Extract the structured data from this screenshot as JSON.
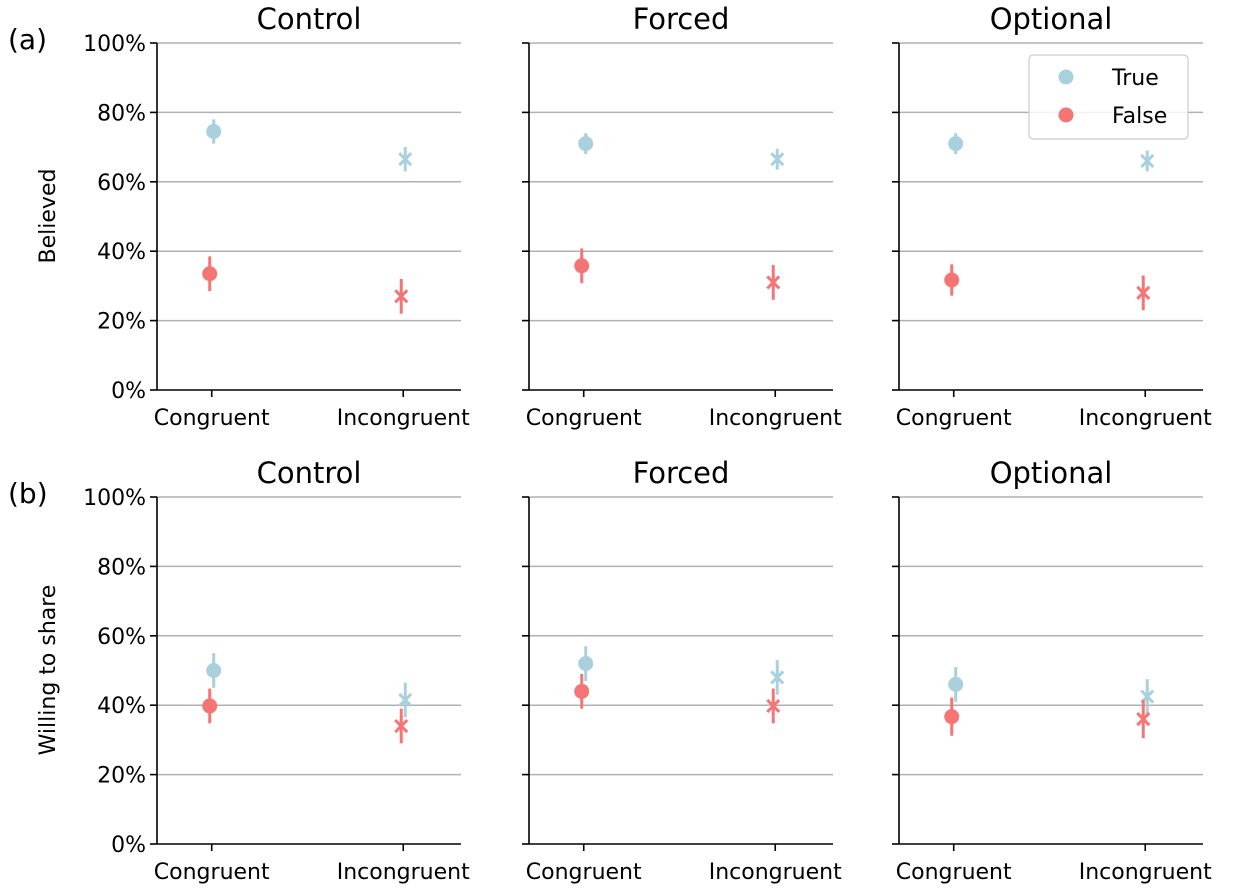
{
  "colors": {
    "true": "#a8d0dd",
    "false": "#f57575"
  },
  "row_labels": [
    "(a)",
    "(b)"
  ],
  "ylabels": [
    "Believed",
    "Willing to share"
  ],
  "legend": {
    "labels": [
      "True",
      "False"
    ],
    "location": "top-right of first-row Optional panel"
  },
  "yticks": [
    "0%",
    "20%",
    "40%",
    "60%",
    "80%",
    "100%"
  ],
  "chart_data": [
    {
      "type": "scatter",
      "row": "(a)",
      "title": "Control",
      "ylabel": "Believed",
      "categories": [
        "Congruent",
        "Incongruent"
      ],
      "ylim": [
        0,
        100
      ],
      "grid": "y",
      "series": [
        {
          "name": "True",
          "markers": [
            "circle",
            "x"
          ],
          "values": [
            74.5,
            66.5
          ],
          "err": [
            3.5,
            3.5
          ]
        },
        {
          "name": "False",
          "markers": [
            "circle",
            "x"
          ],
          "values": [
            33.5,
            27.0
          ],
          "err": [
            5.0,
            5.0
          ]
        }
      ]
    },
    {
      "type": "scatter",
      "row": "(a)",
      "title": "Forced",
      "categories": [
        "Congruent",
        "Incongruent"
      ],
      "ylim": [
        0,
        100
      ],
      "grid": "y",
      "series": [
        {
          "name": "True",
          "markers": [
            "circle",
            "x"
          ],
          "values": [
            71.0,
            66.5
          ],
          "err": [
            3.0,
            3.0
          ]
        },
        {
          "name": "False",
          "markers": [
            "circle",
            "x"
          ],
          "values": [
            35.8,
            31.0
          ],
          "err": [
            5.0,
            5.0
          ]
        }
      ]
    },
    {
      "type": "scatter",
      "row": "(a)",
      "title": "Optional",
      "categories": [
        "Congruent",
        "Incongruent"
      ],
      "ylim": [
        0,
        100
      ],
      "grid": "y",
      "series": [
        {
          "name": "True",
          "markers": [
            "circle",
            "x"
          ],
          "values": [
            71.0,
            66.0
          ],
          "err": [
            3.0,
            3.0
          ]
        },
        {
          "name": "False",
          "markers": [
            "circle",
            "x"
          ],
          "values": [
            31.7,
            28.0
          ],
          "err": [
            4.5,
            5.0
          ]
        }
      ]
    },
    {
      "type": "scatter",
      "row": "(b)",
      "title": "Control",
      "ylabel": "Willing to share",
      "categories": [
        "Congruent",
        "Incongruent"
      ],
      "ylim": [
        0,
        100
      ],
      "grid": "y",
      "series": [
        {
          "name": "True",
          "markers": [
            "circle",
            "x"
          ],
          "values": [
            50.0,
            41.5
          ],
          "err": [
            5.0,
            5.0
          ]
        },
        {
          "name": "False",
          "markers": [
            "circle",
            "x"
          ],
          "values": [
            39.8,
            34.0
          ],
          "err": [
            5.0,
            5.0
          ]
        }
      ]
    },
    {
      "type": "scatter",
      "row": "(b)",
      "title": "Forced",
      "categories": [
        "Congruent",
        "Incongruent"
      ],
      "ylim": [
        0,
        100
      ],
      "grid": "y",
      "series": [
        {
          "name": "True",
          "markers": [
            "circle",
            "x"
          ],
          "values": [
            52.0,
            48.0
          ],
          "err": [
            5.0,
            5.0
          ]
        },
        {
          "name": "False",
          "markers": [
            "circle",
            "x"
          ],
          "values": [
            44.0,
            39.8
          ],
          "err": [
            5.0,
            5.0
          ]
        }
      ]
    },
    {
      "type": "scatter",
      "row": "(b)",
      "title": "Optional",
      "categories": [
        "Congruent",
        "Incongruent"
      ],
      "ylim": [
        0,
        100
      ],
      "grid": "y",
      "series": [
        {
          "name": "True",
          "markers": [
            "circle",
            "x"
          ],
          "values": [
            46.0,
            42.5
          ],
          "err": [
            5.0,
            5.0
          ]
        },
        {
          "name": "False",
          "markers": [
            "circle",
            "x"
          ],
          "values": [
            36.7,
            36.0
          ],
          "err": [
            5.5,
            5.5
          ]
        }
      ]
    }
  ]
}
